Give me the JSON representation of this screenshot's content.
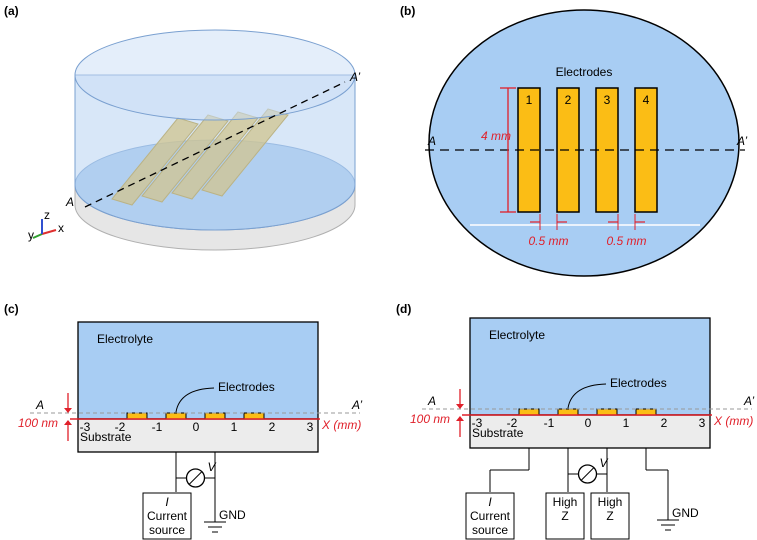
{
  "panels": [
    {
      "label": "(a)",
      "section_a": "A",
      "section_a_prime": "A’",
      "axes": [
        "x",
        "y",
        "z"
      ]
    },
    {
      "label": "(b)",
      "title": "Electrodes",
      "electrodes": [
        "1",
        "2",
        "3",
        "4"
      ],
      "section_a": "A",
      "section_a_prime": "A’",
      "length": "4 mm",
      "gaps": [
        "0.5 mm",
        "0.5 mm"
      ]
    },
    {
      "label": "(c)",
      "electrolyte": "Electrolyte",
      "electrodes": "Electrodes",
      "section_a": "A",
      "section_a_prime": "A’",
      "thickness": "100 nm",
      "substrate": "Substrate",
      "x_ticks": [
        "-3",
        "-2",
        "-1",
        "0",
        "1",
        "2",
        "3"
      ],
      "x_axis": "X (mm)",
      "voltmeter": "V",
      "source": {
        "symbol": "I",
        "lines": [
          "Current",
          "source"
        ]
      },
      "ground": "GND"
    },
    {
      "label": "(d)",
      "electrolyte": "Electrolyte",
      "electrodes": "Electrodes",
      "section_a": "A",
      "section_a_prime": "A’",
      "thickness": "100 nm",
      "substrate": "Substrate",
      "x_ticks": [
        "-3",
        "-2",
        "-1",
        "0",
        "1",
        "2",
        "3"
      ],
      "x_axis": "X (mm)",
      "voltmeter": "V",
      "source": {
        "symbol": "I",
        "lines": [
          "Current",
          "source"
        ]
      },
      "high_z": [
        [
          "High",
          "Z"
        ],
        [
          "High",
          "Z"
        ]
      ],
      "ground": "GND"
    }
  ]
}
